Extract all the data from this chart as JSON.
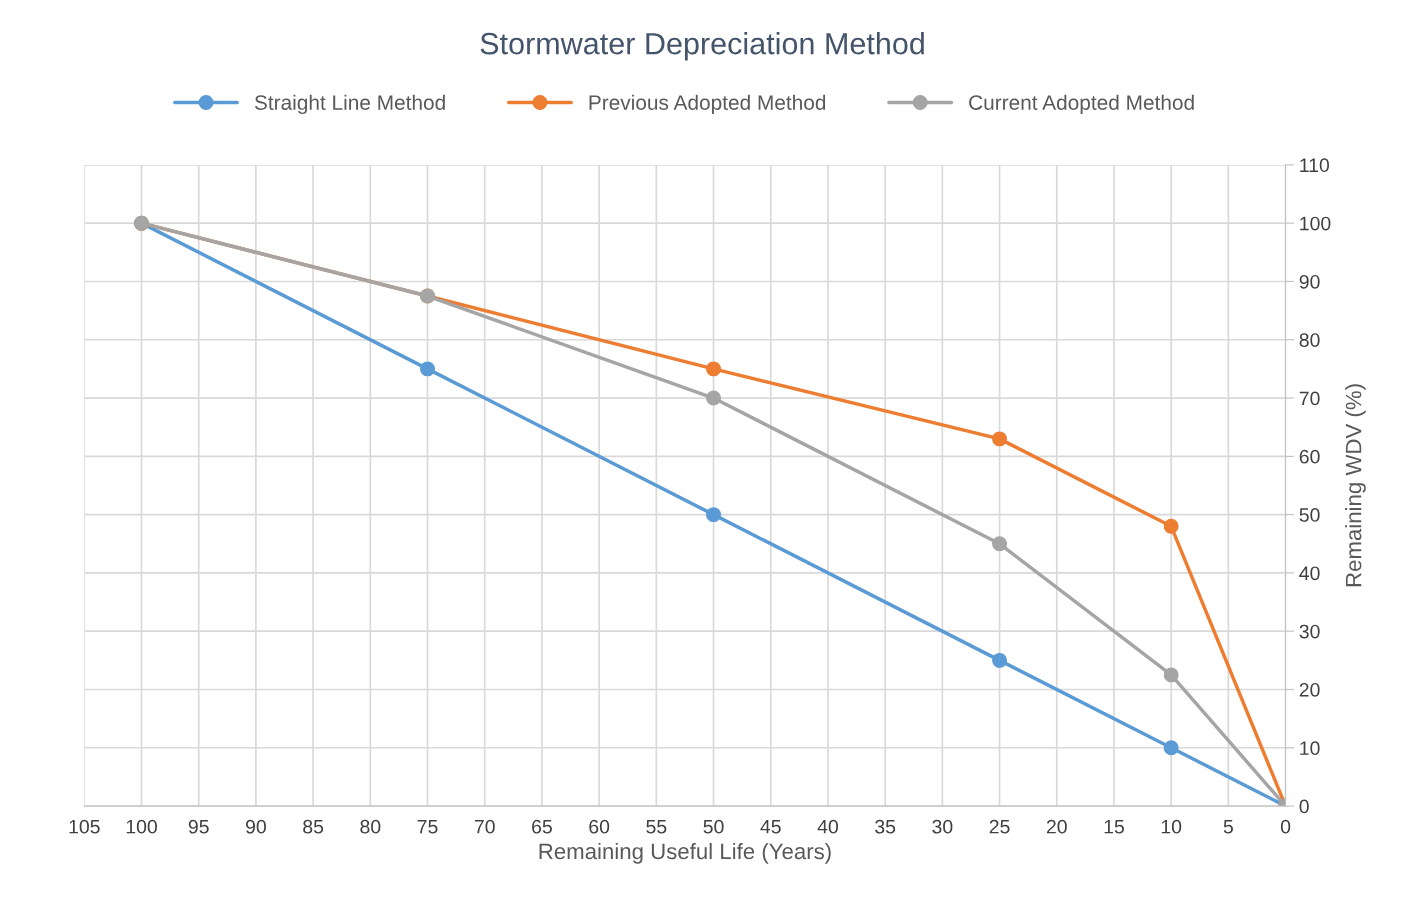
{
  "chart_data": {
    "type": "line",
    "title": "Stormwater Depreciation Method",
    "xlabel": "Remaining Useful Life (Years)",
    "ylabel": "Remaining WDV (%)",
    "x": [
      100,
      75,
      50,
      25,
      10,
      0
    ],
    "series": [
      {
        "name": "Straight Line Method",
        "color": "#5b9bd5",
        "values": [
          100,
          75,
          50,
          25,
          10,
          0
        ]
      },
      {
        "name": "Previous Adopted Method",
        "color": "#ed7d31",
        "values": [
          100,
          87.5,
          75,
          63,
          48,
          0
        ]
      },
      {
        "name": "Current Adopted Method",
        "color": "#a5a5a5",
        "values": [
          100,
          87.5,
          70,
          45,
          22.5,
          0
        ]
      }
    ],
    "xlim": [
      105,
      0
    ],
    "xticks": [
      105,
      100,
      95,
      90,
      85,
      80,
      75,
      70,
      65,
      60,
      55,
      50,
      45,
      40,
      35,
      30,
      25,
      20,
      15,
      10,
      5,
      0
    ],
    "ylim": [
      0,
      110
    ],
    "yticks": [
      0,
      10,
      20,
      30,
      40,
      50,
      60,
      70,
      80,
      90,
      100,
      110
    ],
    "grid": true,
    "legend": "top",
    "marker": "circle",
    "line_style": "solid"
  }
}
